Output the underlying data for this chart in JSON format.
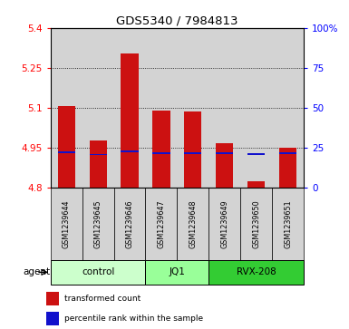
{
  "title": "GDS5340 / 7984813",
  "samples": [
    "GSM1239644",
    "GSM1239645",
    "GSM1239646",
    "GSM1239647",
    "GSM1239648",
    "GSM1239649",
    "GSM1239650",
    "GSM1239651"
  ],
  "bar_tops": [
    5.107,
    4.978,
    5.305,
    5.088,
    5.085,
    4.967,
    4.825,
    4.948
  ],
  "bar_bottoms": [
    4.8,
    4.8,
    4.8,
    4.8,
    4.8,
    4.8,
    4.8,
    4.8
  ],
  "blue_values": [
    4.932,
    4.924,
    4.937,
    4.928,
    4.928,
    4.928,
    4.925,
    4.928
  ],
  "groups": [
    {
      "label": "control",
      "start": 0,
      "end": 3,
      "color": "#ccffcc"
    },
    {
      "label": "JQ1",
      "start": 3,
      "end": 5,
      "color": "#99ff99"
    },
    {
      "label": "RVX-208",
      "start": 5,
      "end": 8,
      "color": "#33cc33"
    }
  ],
  "ylim_left": [
    4.8,
    5.4
  ],
  "ylim_right": [
    0,
    100
  ],
  "yticks_left": [
    4.8,
    4.95,
    5.1,
    5.25,
    5.4
  ],
  "ytick_labels_left": [
    "4.8",
    "4.95",
    "5.1",
    "5.25",
    "5.4"
  ],
  "yticks_right": [
    0,
    25,
    50,
    75,
    100
  ],
  "ytick_labels_right": [
    "0",
    "25",
    "50",
    "75",
    "100%"
  ],
  "bar_color": "#cc1111",
  "blue_color": "#1111cc",
  "bar_width": 0.55,
  "background_color": "#ffffff",
  "legend_items": [
    "transformed count",
    "percentile rank within the sample"
  ],
  "agent_label": "agent",
  "col_bg_color": "#d3d3d3"
}
